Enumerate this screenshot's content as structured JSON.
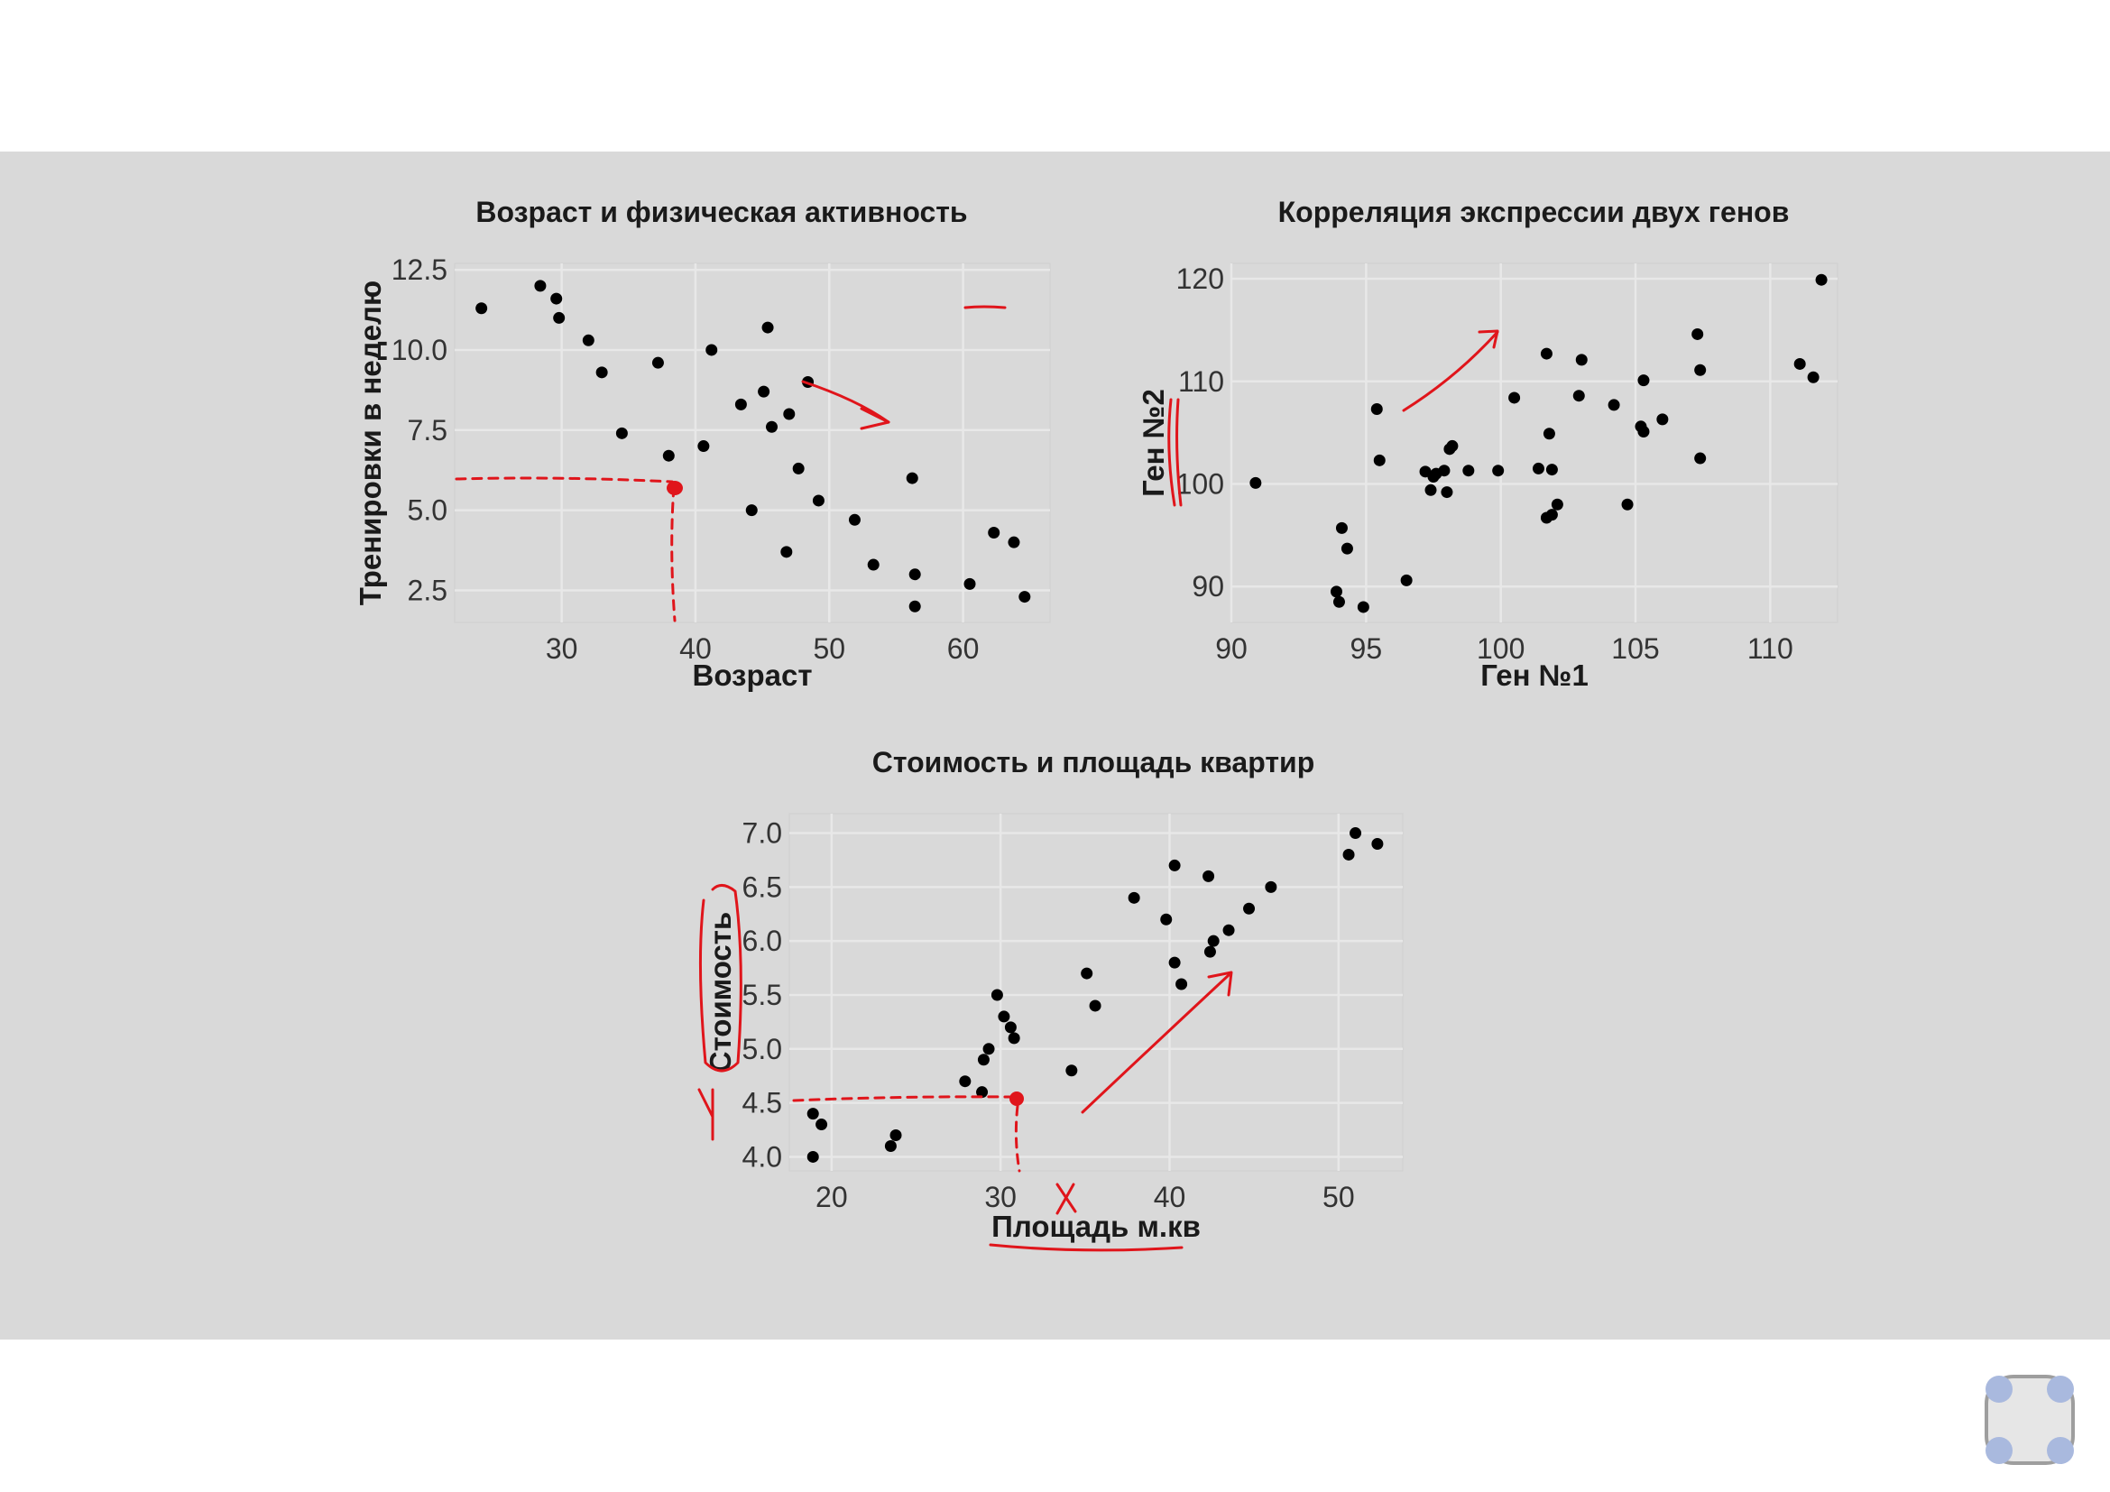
{
  "annotation_color": "#e0151b",
  "point_color": "#000000",
  "widget": {
    "icon": "multi-touch-widget-icon",
    "dot_color": "#a9b9de",
    "ring_color": "#9e9e9e"
  },
  "chart_data": [
    {
      "id": "age",
      "type": "scatter",
      "title": "Возраст и физическая активность",
      "xlabel": "Возраст",
      "ylabel": "Тренировки в неделю",
      "xlim": [
        22,
        66.5
      ],
      "ylim": [
        1.5,
        12.7
      ],
      "xticks": [
        30,
        40,
        50,
        60
      ],
      "xtick_labels": [
        "30",
        "40",
        "50",
        "60"
      ],
      "yticks": [
        2.5,
        5.0,
        7.5,
        10.0,
        12.5
      ],
      "ytick_labels": [
        "2.5",
        "5.0",
        "7.5",
        "10.0",
        "12.5"
      ],
      "grid": true,
      "x": [
        24,
        28.4,
        29.6,
        29.8,
        32,
        33,
        34.5,
        37.2,
        38,
        40.6,
        41.2,
        43.4,
        44.2,
        45.1,
        45.4,
        45.7,
        46.8,
        47,
        47.7,
        48.4,
        49.2,
        51.9,
        53.3,
        56.2,
        56.4,
        56.4,
        60.5,
        62.3,
        63.8,
        64.6
      ],
      "y": [
        11.3,
        12.0,
        11.6,
        11.0,
        10.3,
        9.3,
        7.4,
        9.6,
        6.7,
        7.0,
        10.0,
        8.3,
        5.0,
        8.7,
        10.7,
        7.6,
        3.7,
        8.0,
        6.3,
        9.0,
        5.3,
        4.7,
        3.3,
        6.0,
        2.0,
        3.0,
        2.7,
        4.3,
        4.0,
        2.3
      ]
    },
    {
      "id": "genes",
      "type": "scatter",
      "title": "Корреляция экспрессии двух генов",
      "xlabel": "Ген №1",
      "ylabel": "Ген №2",
      "xlim": [
        90,
        112.5
      ],
      "ylim": [
        86.5,
        121.5
      ],
      "xticks": [
        90,
        95,
        100,
        105,
        110
      ],
      "xtick_labels": [
        "90",
        "95",
        "100",
        "105",
        "110"
      ],
      "yticks": [
        90,
        100,
        110,
        120
      ],
      "ytick_labels": [
        "90",
        "100",
        "110",
        "120"
      ],
      "grid": true,
      "x": [
        90.9,
        93.9,
        94,
        94.1,
        94.3,
        94.9,
        95.4,
        95.5,
        96.5,
        97.2,
        97.4,
        97.5,
        97.6,
        97.9,
        98.0,
        98.1,
        98.2,
        98.8,
        99.9,
        100.5,
        101.4,
        101.7,
        101.7,
        101.8,
        101.9,
        101.9,
        102.1,
        102.9,
        103,
        104.2,
        104.7,
        105.2,
        105.3,
        105.3,
        106,
        107.3,
        107.4,
        107.4,
        111.1,
        111.6,
        111.9
      ],
      "y": [
        100.1,
        89.5,
        88.5,
        95.7,
        93.7,
        88.0,
        107.3,
        102.3,
        90.6,
        101.2,
        99.4,
        100.7,
        101.0,
        101.3,
        99.2,
        103.4,
        103.7,
        101.3,
        101.3,
        108.4,
        101.5,
        112.7,
        96.7,
        104.9,
        97.0,
        101.4,
        98.0,
        108.6,
        112.1,
        107.7,
        98.0,
        105.6,
        105.1,
        110.1,
        106.3,
        114.6,
        111.1,
        102.5,
        111.7,
        110.4,
        119.9
      ]
    },
    {
      "id": "flats",
      "type": "scatter",
      "title": "Стоимость и площадь квартир",
      "xlabel": "Площадь м.кв",
      "ylabel": "Стоимость",
      "xlim": [
        17.5,
        53.8
      ],
      "ylim": [
        3.87,
        7.18
      ],
      "xticks": [
        20,
        30,
        40,
        50
      ],
      "xtick_labels": [
        "20",
        "30",
        "40",
        "50"
      ],
      "yticks": [
        4.0,
        4.5,
        5.0,
        5.5,
        6.0,
        6.5,
        7.0
      ],
      "ytick_labels": [
        "4.0",
        "4.5",
        "5.0",
        "5.5",
        "6.0",
        "6.5",
        "7.0"
      ],
      "grid": true,
      "x": [
        18.9,
        18.9,
        19.4,
        23.5,
        23.8,
        27.9,
        28.9,
        29.0,
        29.3,
        29.8,
        30.2,
        30.6,
        30.8,
        34.2,
        35.1,
        35.6,
        37.9,
        39.8,
        40.3,
        40.3,
        40.7,
        42.3,
        42.4,
        42.6,
        43.5,
        44.7,
        46,
        50.6,
        51,
        52.3
      ],
      "y": [
        4.0,
        4.4,
        4.3,
        4.1,
        4.2,
        4.7,
        4.6,
        4.9,
        5.0,
        5.5,
        5.3,
        5.2,
        5.1,
        4.8,
        5.7,
        5.4,
        6.4,
        6.2,
        5.8,
        6.7,
        5.6,
        6.6,
        5.9,
        6.0,
        6.1,
        6.3,
        6.5,
        6.8,
        7.0,
        6.9
      ]
    }
  ]
}
